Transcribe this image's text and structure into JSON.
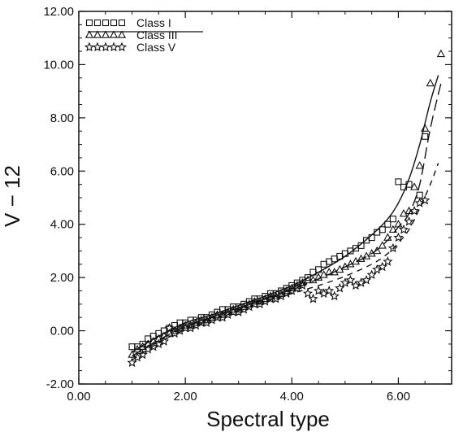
{
  "chart_data": {
    "type": "scatter",
    "title": "",
    "xlabel": "Spectral type",
    "ylabel": "V − 12",
    "xlim": [
      0.0,
      7.0
    ],
    "ylim": [
      -2.0,
      12.0
    ],
    "xticks": [
      "0.00",
      "2.00",
      "4.00",
      "6.00"
    ],
    "xtick_values": [
      0,
      2,
      4,
      6
    ],
    "yticks": [
      "-2.00",
      "0.00",
      "2.00",
      "4.00",
      "6.00",
      "8.00",
      "10.00",
      "12.00"
    ],
    "ytick_values": [
      -2,
      0,
      2,
      4,
      6,
      8,
      10,
      12
    ],
    "grid": false,
    "legend_position": "top-left",
    "series": [
      {
        "name": "Class I",
        "marker": "square",
        "points": [
          [
            1.0,
            -0.6
          ],
          [
            1.1,
            -0.6
          ],
          [
            1.2,
            -0.5
          ],
          [
            1.3,
            -0.3
          ],
          [
            1.4,
            -0.2
          ],
          [
            1.5,
            -0.1
          ],
          [
            1.6,
            0.0
          ],
          [
            1.7,
            0.1
          ],
          [
            1.8,
            0.2
          ],
          [
            1.9,
            0.3
          ],
          [
            2.0,
            0.3
          ],
          [
            2.1,
            0.4
          ],
          [
            2.2,
            0.4
          ],
          [
            2.3,
            0.5
          ],
          [
            2.4,
            0.5
          ],
          [
            2.5,
            0.6
          ],
          [
            2.6,
            0.7
          ],
          [
            2.7,
            0.8
          ],
          [
            2.8,
            0.8
          ],
          [
            2.9,
            0.9
          ],
          [
            3.0,
            0.9
          ],
          [
            3.1,
            1.0
          ],
          [
            3.2,
            1.1
          ],
          [
            3.3,
            1.2
          ],
          [
            3.4,
            1.2
          ],
          [
            3.5,
            1.3
          ],
          [
            3.6,
            1.4
          ],
          [
            3.7,
            1.4
          ],
          [
            3.8,
            1.5
          ],
          [
            3.9,
            1.6
          ],
          [
            4.0,
            1.7
          ],
          [
            4.1,
            1.8
          ],
          [
            4.2,
            1.9
          ],
          [
            4.3,
            2.0
          ],
          [
            4.4,
            2.2
          ],
          [
            4.5,
            2.3
          ],
          [
            4.6,
            2.5
          ],
          [
            4.7,
            2.6
          ],
          [
            4.8,
            2.7
          ],
          [
            4.9,
            2.8
          ],
          [
            5.0,
            2.9
          ],
          [
            5.1,
            3.0
          ],
          [
            5.2,
            3.1
          ],
          [
            5.3,
            3.2
          ],
          [
            5.4,
            3.4
          ],
          [
            5.5,
            3.5
          ],
          [
            5.6,
            3.7
          ],
          [
            5.7,
            3.8
          ],
          [
            5.8,
            4.0
          ],
          [
            5.9,
            4.2
          ],
          [
            6.0,
            5.6
          ],
          [
            6.1,
            5.4
          ],
          [
            6.2,
            5.5
          ],
          [
            6.4,
            5.1
          ],
          [
            6.5,
            7.3
          ]
        ]
      },
      {
        "name": "Class III",
        "marker": "triangle",
        "points": [
          [
            1.0,
            -0.9
          ],
          [
            1.1,
            -0.7
          ],
          [
            1.2,
            -0.6
          ],
          [
            1.3,
            -0.5
          ],
          [
            1.4,
            -0.4
          ],
          [
            1.5,
            -0.3
          ],
          [
            1.6,
            -0.2
          ],
          [
            1.7,
            -0.1
          ],
          [
            1.8,
            0.0
          ],
          [
            1.9,
            0.1
          ],
          [
            2.0,
            0.2
          ],
          [
            2.1,
            0.2
          ],
          [
            2.2,
            0.3
          ],
          [
            2.3,
            0.4
          ],
          [
            2.4,
            0.4
          ],
          [
            2.5,
            0.5
          ],
          [
            2.6,
            0.6
          ],
          [
            2.7,
            0.6
          ],
          [
            2.8,
            0.7
          ],
          [
            2.9,
            0.8
          ],
          [
            3.0,
            0.8
          ],
          [
            3.1,
            0.9
          ],
          [
            3.2,
            1.0
          ],
          [
            3.3,
            1.1
          ],
          [
            3.4,
            1.1
          ],
          [
            3.5,
            1.2
          ],
          [
            3.6,
            1.3
          ],
          [
            3.7,
            1.3
          ],
          [
            3.8,
            1.4
          ],
          [
            3.9,
            1.5
          ],
          [
            4.0,
            1.6
          ],
          [
            4.1,
            1.7
          ],
          [
            4.2,
            1.8
          ],
          [
            4.3,
            1.9
          ],
          [
            4.4,
            1.9
          ],
          [
            4.5,
            2.0
          ],
          [
            4.6,
            2.1
          ],
          [
            4.7,
            2.2
          ],
          [
            4.8,
            2.2
          ],
          [
            4.9,
            2.3
          ],
          [
            5.0,
            2.4
          ],
          [
            5.1,
            2.5
          ],
          [
            5.2,
            2.6
          ],
          [
            5.3,
            2.7
          ],
          [
            5.4,
            2.8
          ],
          [
            5.5,
            2.9
          ],
          [
            5.6,
            3.0
          ],
          [
            5.7,
            3.2
          ],
          [
            5.8,
            3.5
          ],
          [
            5.9,
            3.8
          ],
          [
            6.0,
            4.0
          ],
          [
            6.1,
            4.4
          ],
          [
            6.2,
            4.5
          ],
          [
            6.3,
            5.4
          ],
          [
            6.4,
            6.2
          ],
          [
            6.5,
            7.6
          ],
          [
            6.6,
            9.3
          ],
          [
            6.8,
            10.4
          ]
        ]
      },
      {
        "name": "Class V",
        "marker": "star",
        "points": [
          [
            1.0,
            -1.2
          ],
          [
            1.1,
            -1.0
          ],
          [
            1.2,
            -0.9
          ],
          [
            1.3,
            -0.7
          ],
          [
            1.4,
            -0.6
          ],
          [
            1.5,
            -0.5
          ],
          [
            1.6,
            -0.4
          ],
          [
            1.7,
            0.1
          ],
          [
            1.8,
            -0.1
          ],
          [
            1.9,
            0.0
          ],
          [
            2.0,
            0.1
          ],
          [
            2.1,
            0.1
          ],
          [
            2.2,
            0.2
          ],
          [
            2.3,
            0.3
          ],
          [
            2.4,
            0.3
          ],
          [
            2.5,
            0.4
          ],
          [
            2.6,
            0.5
          ],
          [
            2.7,
            0.5
          ],
          [
            2.8,
            0.6
          ],
          [
            2.9,
            0.7
          ],
          [
            3.0,
            0.7
          ],
          [
            3.1,
            0.8
          ],
          [
            3.2,
            0.9
          ],
          [
            3.3,
            1.0
          ],
          [
            3.4,
            1.0
          ],
          [
            3.5,
            1.1
          ],
          [
            3.6,
            1.2
          ],
          [
            3.7,
            1.2
          ],
          [
            3.8,
            1.3
          ],
          [
            3.9,
            1.4
          ],
          [
            4.0,
            1.5
          ],
          [
            4.1,
            1.6
          ],
          [
            4.2,
            1.7
          ],
          [
            4.3,
            1.4
          ],
          [
            4.4,
            1.2
          ],
          [
            4.5,
            1.5
          ],
          [
            4.6,
            1.4
          ],
          [
            4.7,
            1.5
          ],
          [
            4.8,
            1.3
          ],
          [
            4.9,
            1.6
          ],
          [
            5.0,
            1.8
          ],
          [
            5.1,
            1.9
          ],
          [
            5.2,
            1.7
          ],
          [
            5.3,
            1.8
          ],
          [
            5.4,
            1.9
          ],
          [
            5.5,
            2.1
          ],
          [
            5.6,
            2.3
          ],
          [
            5.7,
            2.4
          ],
          [
            5.8,
            2.6
          ],
          [
            5.9,
            3.1
          ],
          [
            6.0,
            3.5
          ],
          [
            6.1,
            3.8
          ],
          [
            6.2,
            4.1
          ],
          [
            6.3,
            4.5
          ],
          [
            6.4,
            4.8
          ],
          [
            6.5,
            4.9
          ]
        ]
      }
    ],
    "fit_curves": [
      {
        "style": "solid",
        "x": [
          1.0,
          1.5,
          2.0,
          2.5,
          3.0,
          3.5,
          4.0,
          4.5,
          5.0,
          5.5,
          5.8,
          6.0,
          6.2,
          6.4,
          6.6,
          6.75
        ],
        "y": [
          -0.8,
          -0.2,
          0.3,
          0.6,
          0.95,
          1.3,
          1.7,
          2.2,
          2.8,
          3.6,
          4.2,
          4.8,
          5.7,
          7.0,
          8.6,
          9.6
        ]
      },
      {
        "style": "long-dash",
        "x": [
          1.0,
          1.5,
          2.0,
          2.5,
          3.0,
          3.5,
          4.0,
          4.5,
          5.0,
          5.5,
          5.8,
          6.0,
          6.2,
          6.4,
          6.6,
          6.8
        ],
        "y": [
          -0.95,
          -0.35,
          0.15,
          0.5,
          0.85,
          1.2,
          1.55,
          1.95,
          2.4,
          2.9,
          3.4,
          3.9,
          4.4,
          5.5,
          7.6,
          9.3
        ]
      },
      {
        "style": "short-dash",
        "x": [
          1.0,
          1.5,
          2.0,
          2.5,
          3.0,
          3.5,
          4.0,
          4.5,
          5.0,
          5.5,
          5.8,
          6.0,
          6.2,
          6.4,
          6.6,
          6.75
        ],
        "y": [
          -1.1,
          -0.45,
          0.05,
          0.4,
          0.75,
          1.1,
          1.4,
          1.7,
          2.05,
          2.5,
          2.9,
          3.3,
          3.8,
          4.6,
          5.5,
          6.3
        ]
      }
    ]
  }
}
